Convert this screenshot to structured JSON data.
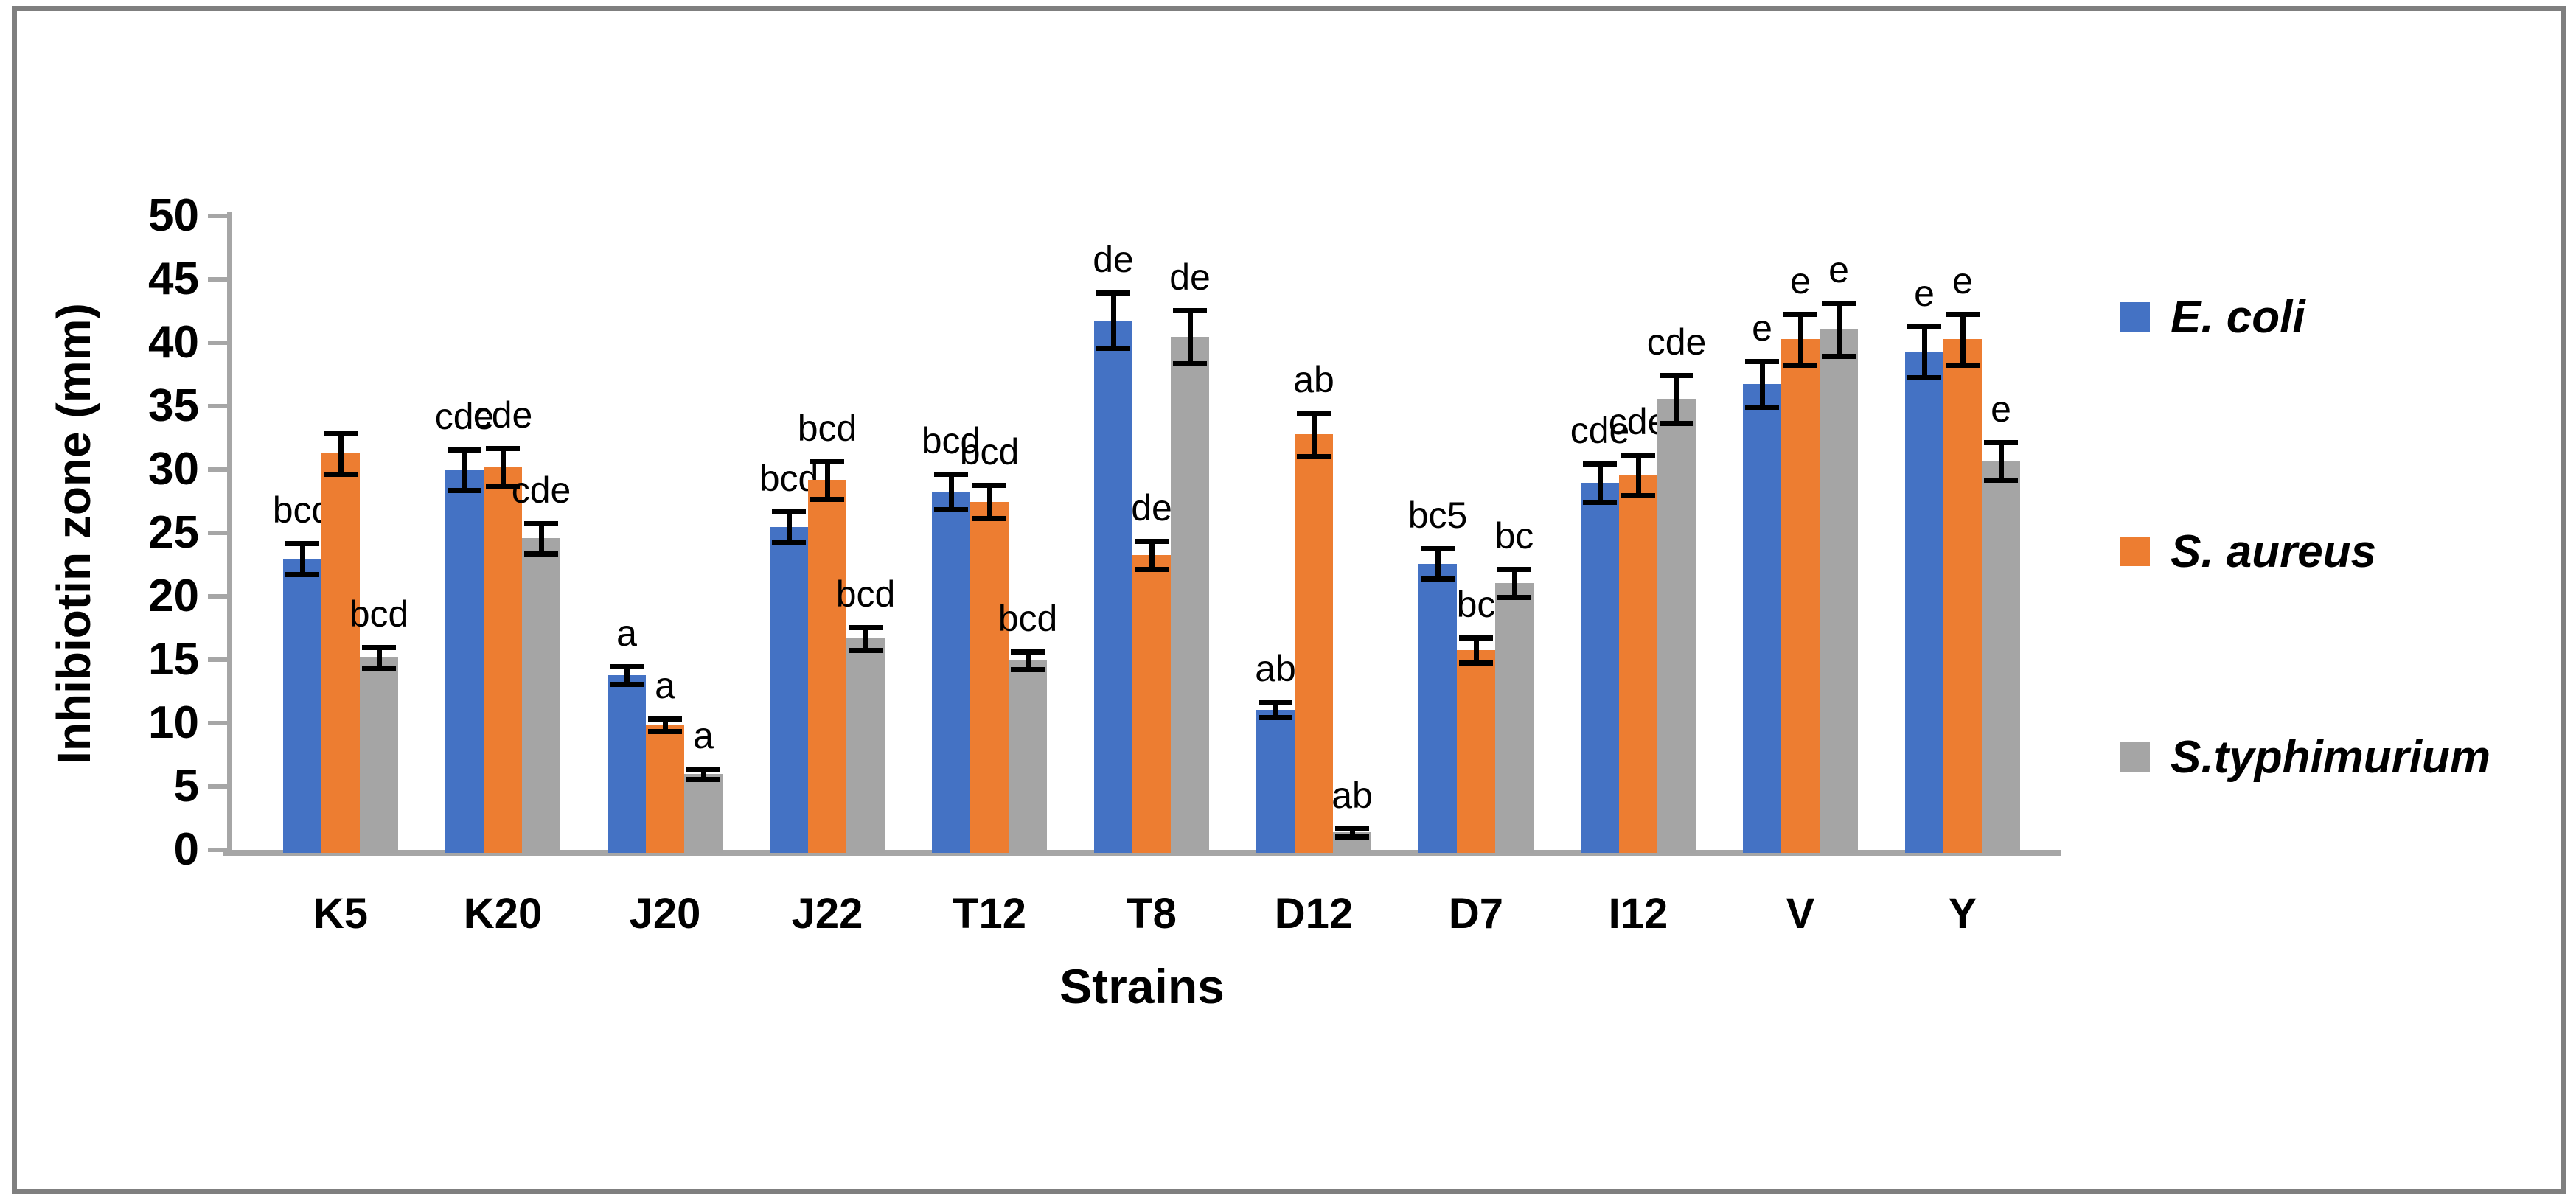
{
  "figure": {
    "background": "#ffffff",
    "border_color": "#7f7f7f"
  },
  "chart_data": {
    "type": "bar",
    "title": "",
    "xlabel": "Strains",
    "ylabel": "Inhibiotin zone (mm)",
    "ylim": [
      0,
      50
    ],
    "yticks": [
      0,
      5,
      10,
      15,
      20,
      25,
      30,
      35,
      40,
      45,
      50
    ],
    "grid": false,
    "legend_position": "right",
    "axis_color": "#a6a6a6",
    "error_bar_color": "#000000",
    "text_color": "#000000",
    "categories": [
      "K5",
      "K20",
      "J20",
      "J22",
      "T12",
      "T8",
      "D12",
      "D7",
      "I12",
      "V",
      "Y"
    ],
    "series": [
      {
        "name": "E. coli",
        "color": "#4472C4",
        "values": [
          23.2,
          30.2,
          14.0,
          25.7,
          28.5,
          42.0,
          11.3,
          22.8,
          29.2,
          37.0,
          39.5
        ],
        "errors": [
          1.2,
          1.6,
          0.7,
          1.2,
          1.4,
          2.2,
          0.6,
          1.2,
          1.5,
          1.8,
          2.0
        ],
        "sig_labels": [
          "bcd",
          "cde",
          "a",
          "bcd",
          "bcd",
          "de",
          "ab",
          "bc5",
          "cde",
          "e",
          "e"
        ]
      },
      {
        "name": "S. aureus",
        "color": "#ED7D31",
        "values": [
          31.5,
          30.4,
          10.1,
          29.4,
          27.7,
          23.5,
          33.0,
          16.0,
          29.8,
          40.5,
          40.5
        ],
        "errors": [
          1.6,
          1.5,
          0.5,
          1.5,
          1.3,
          1.1,
          1.7,
          1.0,
          1.6,
          2.0,
          2.0
        ],
        "sig_labels": [
          "",
          "cde",
          "a",
          "bcd",
          "bcd",
          "de",
          "ab",
          "bc",
          "cde",
          "e",
          "e"
        ]
      },
      {
        "name": "S.typhimurium",
        "color": "#A5A5A5",
        "values": [
          15.4,
          24.8,
          6.2,
          16.9,
          15.2,
          40.7,
          1.6,
          21.3,
          35.8,
          41.3,
          30.9
        ],
        "errors": [
          0.8,
          1.2,
          0.4,
          0.9,
          0.7,
          2.1,
          0.3,
          1.1,
          1.9,
          2.1,
          1.5
        ],
        "sig_labels": [
          "bcd",
          "cde",
          "a",
          "bcd",
          "bcd",
          "de",
          "ab",
          "bc",
          "cde",
          "e",
          "e"
        ]
      }
    ]
  }
}
